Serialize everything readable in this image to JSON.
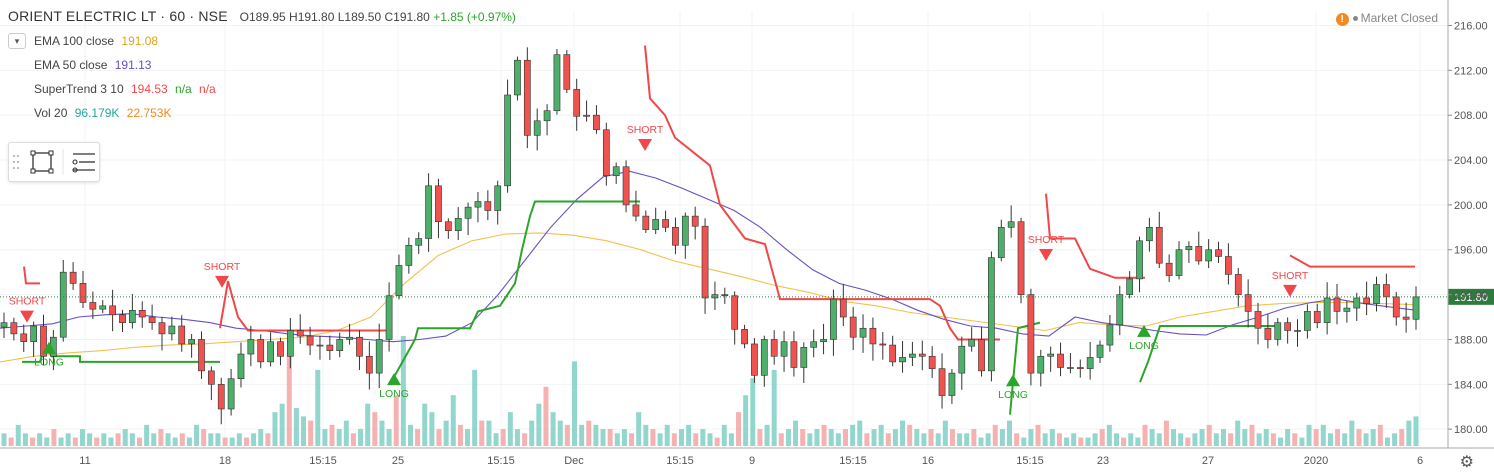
{
  "header": {
    "title": "ORIENT ELECTRIC LT · 60 · NSE",
    "open": "O189.95",
    "high": "H191.80",
    "low": "L189.50",
    "close": "C191.80",
    "change": "+1.85 (+0.97%)"
  },
  "indicators": [
    {
      "name": "EMA 100 close",
      "values": [
        "191.08"
      ],
      "colors": [
        "#e0a21a"
      ]
    },
    {
      "name": "EMA 50 close",
      "values": [
        "191.13"
      ],
      "colors": [
        "#6a4fc0"
      ]
    },
    {
      "name": "SuperTrend 3 10",
      "values": [
        "194.53",
        "n/a",
        "n/a"
      ],
      "colors": [
        "#f0484a",
        "#2aa52a",
        "#f0484a"
      ]
    },
    {
      "name": "Vol 20",
      "values": [
        "96.179K",
        "22.753K"
      ],
      "colors": [
        "#26a69a",
        "#f08a24"
      ]
    }
  ],
  "status": {
    "market_icon": "!",
    "market_label": "Market Closed"
  },
  "price_label": "191.80",
  "colors": {
    "up_candle": "#4caf6a",
    "down_candle": "#ef5350",
    "candle_wick": "#333333",
    "ema100": "#f2c14e",
    "ema50": "#6a4fc0",
    "st_down": "#f0484a",
    "st_up": "#2aa52a",
    "vol_up": "#7fcfc6",
    "vol_down": "#f4a3a3",
    "price_tag": "#2f7b3e"
  },
  "chart_data": {
    "type": "candlestick",
    "symbol": "ORIENT ELECTRIC LT",
    "interval": "60",
    "exchange": "NSE",
    "y_ticks": [
      "216.00",
      "212.00",
      "208.00",
      "204.00",
      "200.00",
      "196.00",
      "192.00",
      "188.00",
      "184.00",
      "180.00"
    ],
    "x_ticks": [
      "11",
      "18",
      "15:15",
      "25",
      "15:15",
      "Dec",
      "15:15",
      "9",
      "15:15",
      "16",
      "15:15",
      "23",
      "27",
      "2020",
      "6"
    ],
    "ylim": [
      178.5,
      217.2
    ],
    "last_price": 191.8,
    "close_path": [
      189.5,
      188.5,
      187.8,
      189.2,
      186.5,
      188.2,
      194.0,
      193.0,
      191.3,
      190.7,
      191.0,
      190.2,
      189.5,
      190.6,
      190.0,
      189.5,
      188.5,
      189.2,
      187.6,
      188.0,
      185.2,
      184.0,
      181.8,
      184.5,
      186.7,
      188.0,
      186.0,
      187.8,
      186.5,
      188.8,
      188.3,
      187.5,
      187.5,
      187.0,
      188.0,
      188.2,
      186.5,
      185.0,
      188.0,
      191.9,
      194.6,
      196.4,
      197.0,
      201.7,
      198.5,
      197.7,
      198.8,
      199.8,
      200.3,
      199.5,
      201.7,
      209.8,
      212.9,
      206.2,
      207.5,
      208.4,
      213.4,
      210.3,
      207.9,
      208.0,
      206.7,
      202.6,
      203.4,
      200.0,
      199.0,
      197.8,
      198.7,
      198.0,
      196.4,
      199.0,
      198.1,
      191.7,
      192.0,
      191.9,
      188.9,
      187.6,
      184.8,
      188.0,
      186.5,
      187.8,
      185.5,
      187.3,
      187.8,
      188.0,
      191.6,
      190.0,
      188.2,
      189.0,
      187.6,
      187.5,
      186.0,
      186.4,
      186.7,
      186.5,
      185.4,
      183.0,
      185.0,
      187.4,
      188.0,
      185.2,
      195.3,
      198.0,
      198.5,
      192.0,
      185.0,
      186.5,
      186.7,
      185.5,
      185.5,
      185.4,
      186.4,
      187.5,
      189.3,
      192.0,
      193.4,
      196.8,
      198.0,
      194.8,
      193.7,
      196.0,
      196.3,
      195.0,
      196.0,
      195.4,
      193.8,
      192.0,
      190.5,
      189.0,
      188.0,
      189.5,
      188.8,
      188.8,
      190.5,
      189.5,
      191.7,
      190.5,
      190.8,
      191.7,
      191.2,
      192.9,
      191.8,
      190.0,
      189.8,
      191.8
    ],
    "ema50_path": [
      189.0,
      189.2,
      189.4,
      190.0,
      190.2,
      190.3,
      190.0,
      189.8,
      189.5,
      189.0,
      188.8,
      188.5,
      188.3,
      188.2,
      188.0,
      187.8,
      188.0,
      188.3,
      189.5,
      192.0,
      195.0,
      198.0,
      200.5,
      202.5,
      203.0,
      202.4,
      201.5,
      200.5,
      199.5,
      198.0,
      196.0,
      194.2,
      193.0,
      192.4,
      191.6,
      190.6,
      189.8,
      189.2,
      189.0,
      188.5,
      188.3,
      190.0,
      189.5,
      189.2,
      188.8,
      188.5,
      188.4,
      189.3,
      190.0,
      190.8,
      191.3,
      191.6,
      191.2,
      190.9,
      190.6
    ],
    "ema100_path": [
      186.0,
      186.5,
      186.8,
      187.0,
      187.3,
      187.5,
      187.6,
      187.8,
      188.0,
      188.2,
      188.8,
      190.0,
      193.0,
      195.5,
      196.8,
      197.4,
      197.5,
      197.3,
      196.8,
      196.0,
      195.0,
      194.3,
      193.6,
      192.8,
      192.2,
      191.4,
      191.0,
      190.4,
      190.0,
      189.6,
      189.2,
      188.8,
      189.5,
      189.3,
      189.2,
      190.0,
      190.5,
      191.0,
      191.2,
      191.3,
      191.3,
      191.2,
      191.1
    ],
    "supertrend_up_segments": [
      [
        [
          22,
          186.0
        ],
        [
          40,
          186.0
        ],
        [
          45,
          187.5
        ],
        [
          52,
          186.5
        ],
        [
          80,
          186.5
        ],
        [
          80,
          186.0
        ],
        [
          220,
          186.0
        ]
      ],
      [
        [
          395,
          184.8
        ],
        [
          415,
          188.0
        ],
        [
          418,
          189.0
        ],
        [
          470,
          189.0
        ],
        [
          478,
          190.5
        ],
        [
          500,
          191.0
        ],
        [
          515,
          193.0
        ],
        [
          522,
          196.0
        ],
        [
          530,
          199.0
        ],
        [
          535,
          200.3
        ],
        [
          640,
          200.3
        ]
      ],
      [
        [
          1010,
          181.3
        ],
        [
          1018,
          189.0
        ],
        [
          1040,
          189.5
        ]
      ],
      [
        [
          1140,
          184.2
        ],
        [
          1148,
          186.0
        ],
        [
          1160,
          189.2
        ],
        [
          1280,
          189.2
        ]
      ]
    ],
    "supertrend_down_segments": [
      [
        [
          24,
          194.5
        ],
        [
          26,
          193.0
        ],
        [
          40,
          193.0
        ]
      ],
      [
        [
          220,
          189.0
        ],
        [
          228,
          193.2
        ],
        [
          238,
          190.0
        ],
        [
          248,
          188.8
        ],
        [
          390,
          188.8
        ]
      ],
      [
        [
          645,
          214.2
        ],
        [
          650,
          209.5
        ],
        [
          665,
          208.0
        ],
        [
          675,
          206.0
        ],
        [
          710,
          203.5
        ],
        [
          720,
          200.0
        ],
        [
          745,
          197.0
        ],
        [
          765,
          196.5
        ],
        [
          780,
          191.6
        ],
        [
          930,
          191.6
        ],
        [
          940,
          191.0
        ],
        [
          950,
          189.0
        ],
        [
          958,
          188.0
        ],
        [
          1000,
          188.0
        ]
      ],
      [
        [
          1046,
          201.0
        ],
        [
          1050,
          197.0
        ],
        [
          1075,
          197.0
        ],
        [
          1090,
          194.3
        ],
        [
          1115,
          193.5
        ],
        [
          1145,
          193.5
        ]
      ],
      [
        [
          1290,
          195.5
        ],
        [
          1300,
          195.0
        ],
        [
          1310,
          194.5
        ],
        [
          1415,
          194.5
        ]
      ]
    ],
    "signals": [
      {
        "type": "SHORT",
        "x": 27,
        "price": 189.5
      },
      {
        "type": "LONG",
        "x": 49,
        "price": 187.8
      },
      {
        "type": "SHORT",
        "x": 222,
        "price": 192.6
      },
      {
        "type": "LONG",
        "x": 394,
        "price": 185.0
      },
      {
        "type": "SHORT",
        "x": 645,
        "price": 204.8
      },
      {
        "type": "LONG",
        "x": 1013,
        "price": 184.9
      },
      {
        "type": "SHORT",
        "x": 1046,
        "price": 195.0
      },
      {
        "type": "LONG",
        "x": 1144,
        "price": 189.3
      },
      {
        "type": "SHORT",
        "x": 1290,
        "price": 191.8
      }
    ],
    "volume_path": [
      3,
      2,
      5,
      3,
      2,
      3,
      2,
      4,
      2,
      3,
      2,
      4,
      3,
      2,
      3,
      2,
      3,
      4,
      3,
      2,
      5,
      3,
      4,
      3,
      2,
      3,
      2,
      5,
      4,
      3,
      3,
      2,
      2,
      3,
      2,
      3,
      4,
      3,
      8,
      10,
      22,
      9,
      7,
      6,
      18,
      4,
      5,
      4,
      6,
      3,
      4,
      10,
      8,
      6,
      4,
      12,
      26,
      5,
      4,
      10,
      8,
      4,
      6,
      12,
      5,
      4,
      18,
      6,
      6,
      3,
      4,
      8,
      4,
      3,
      6,
      10,
      14,
      8,
      6,
      5,
      20,
      5,
      6,
      5,
      4,
      4,
      3,
      4,
      3,
      8,
      5,
      4,
      3,
      5,
      3,
      4,
      5,
      3,
      4,
      3,
      2,
      5,
      3,
      8,
      12,
      16,
      4,
      5,
      18,
      3,
      4,
      6,
      4,
      3,
      4,
      5,
      4,
      3,
      4,
      5,
      6,
      3,
      4,
      5,
      3,
      4,
      6,
      5,
      4,
      3,
      4,
      3,
      6,
      4,
      3,
      3,
      4,
      2,
      3,
      5,
      4,
      6,
      3,
      2,
      4,
      5,
      3,
      4,
      3,
      2,
      3,
      2,
      2,
      3,
      4,
      5,
      3,
      2,
      3,
      2,
      5,
      4,
      3,
      6,
      4,
      3,
      2,
      3,
      4,
      5,
      3,
      4,
      3,
      6,
      4,
      5,
      3,
      4,
      3,
      2,
      4,
      3,
      2,
      5,
      4,
      5,
      3,
      4,
      3,
      6,
      4,
      3,
      4,
      5,
      2,
      3,
      4,
      6,
      7
    ]
  }
}
